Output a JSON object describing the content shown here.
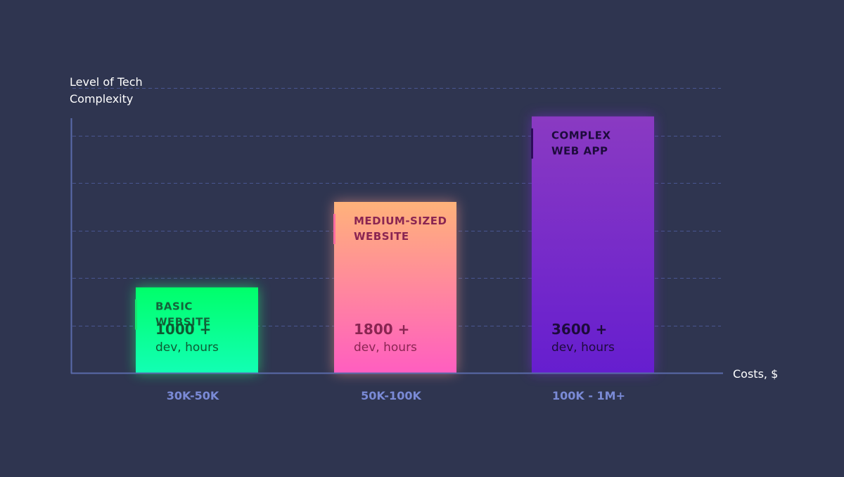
{
  "chart_data": {
    "type": "bar",
    "xlabel": "Costs, $",
    "ylabel_lines": [
      "Level of Tech",
      "Complexity"
    ],
    "categories": [
      "30K-50K",
      "50K-100K",
      "100K - 1M+"
    ],
    "values": [
      1800,
      3600,
      5400
    ],
    "ylim": [
      0,
      6000
    ],
    "grid": true,
    "bars": [
      {
        "title_lines": [
          "BASIC",
          "WEBSITE"
        ],
        "hours_value": "1000 +",
        "hours_unit": "dev, hours",
        "gradient_top": "#00ff6a",
        "gradient_bottom": "#12ffb4",
        "glow": "#1cff7a",
        "text_color": "#0e5a32",
        "title_color": "#14633a",
        "accent_bar_color": "#16e670"
      },
      {
        "title_lines": [
          "MEDIUM-SIZED",
          "WEBSITE"
        ],
        "hours_value": "1800 +",
        "hours_unit": "dev, hours",
        "gradient_top": "#ffb27a",
        "gradient_bottom": "#ff5ec0",
        "glow": "#ff9a8a",
        "text_color": "#8a2552",
        "title_color": "#8a2552",
        "accent_bar_color": "#ff6aa0"
      },
      {
        "title_lines": [
          "COMPLEX",
          "WEB APP"
        ],
        "hours_value": "3600 +",
        "hours_unit": "dev, hours",
        "gradient_top": "#8a3ac2",
        "gradient_bottom": "#661ecf",
        "glow": "#7a2ad8",
        "text_color": "#1d0b3c",
        "title_color": "#1d0b3c",
        "accent_bar_color": "#2e0d5a"
      }
    ]
  },
  "colors": {
    "background": "#2f3550",
    "axis": "#5a6aaa",
    "grid": "#4c5a99",
    "tick_label": "#7a8ad6",
    "axis_title": "#ffffff"
  }
}
